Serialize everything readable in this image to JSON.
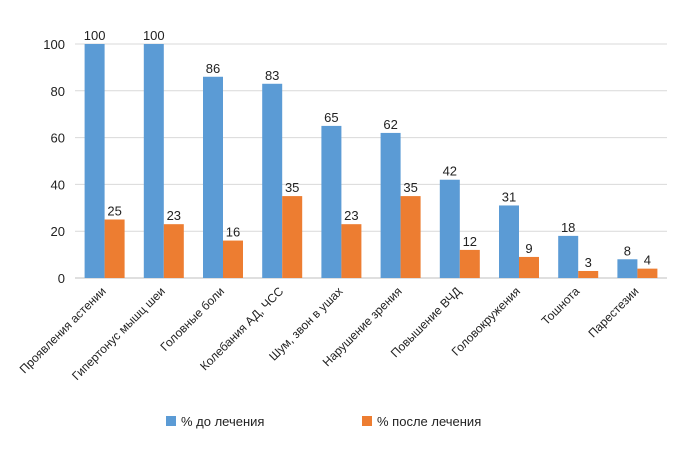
{
  "chart_data": {
    "type": "bar",
    "categories": [
      "Проявления астении",
      "Гипертонус мышц шеи",
      "Головные боли",
      "Колебания АД, ЧСС",
      "Шум, звон в ушах",
      "Нарушение зрения",
      "Повышение ВЧД",
      "Головокружения",
      "Тошнота",
      "Парестезии"
    ],
    "series": [
      {
        "name": "% до лечения",
        "color": "#5b9bd5",
        "values": [
          100,
          100,
          86,
          83,
          65,
          62,
          42,
          31,
          18,
          8
        ]
      },
      {
        "name": "% после лечения",
        "color": "#ed7d31",
        "values": [
          25,
          23,
          16,
          35,
          23,
          35,
          12,
          9,
          3,
          4
        ]
      }
    ],
    "ylim": [
      0,
      100
    ],
    "yticks": [
      0,
      20,
      40,
      60,
      80,
      100
    ],
    "grid": true,
    "legend_position": "bottom",
    "data_labels": true,
    "title": "",
    "xlabel": "",
    "ylabel": ""
  }
}
